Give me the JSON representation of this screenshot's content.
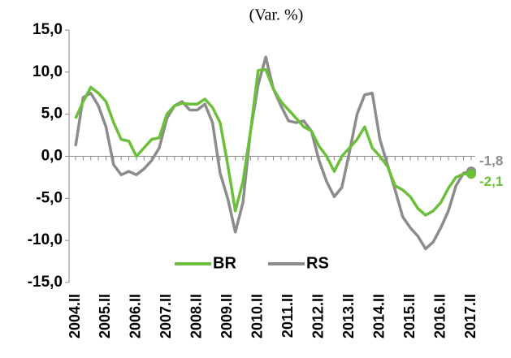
{
  "chart_data": {
    "type": "line",
    "title": "(Var. %)",
    "categories": [
      "2004.II",
      null,
      null,
      null,
      "2005.II",
      null,
      null,
      null,
      "2006.II",
      null,
      null,
      null,
      "2007.II",
      null,
      null,
      null,
      "2008.II",
      null,
      null,
      null,
      "2009.II",
      null,
      null,
      null,
      "2010.II",
      null,
      null,
      null,
      "2011.II",
      null,
      null,
      null,
      "2012.II",
      null,
      null,
      null,
      "2013.II",
      null,
      null,
      null,
      "2014.II",
      null,
      null,
      null,
      "2015.II",
      null,
      null,
      null,
      "2016.II",
      null,
      null,
      null,
      "2017.II"
    ],
    "series": [
      {
        "name": "BR",
        "color": "#6cbf3a",
        "values": [
          4.5,
          6.5,
          8.2,
          7.5,
          6.5,
          4,
          2,
          1.8,
          0,
          1,
          2,
          2.2,
          5,
          6,
          6.3,
          6.2,
          6.2,
          6.8,
          5.8,
          4,
          -1,
          -6.5,
          -3,
          3,
          10.2,
          10.3,
          8,
          6.5,
          5.5,
          4.5,
          3.5,
          3,
          1.2,
          0,
          -1.8,
          0,
          1,
          2,
          3.5,
          1,
          0,
          -1.2,
          -3.5,
          -4,
          -4.8,
          -6.2,
          -7,
          -6.5,
          -5.5,
          -3.8,
          -2.5,
          -2.1,
          -2.1
        ],
        "value_labels": [
          null,
          null,
          null,
          null,
          null,
          null,
          null,
          null,
          null,
          null,
          null,
          null,
          null,
          null,
          null,
          null,
          null,
          null,
          null,
          null,
          null,
          null,
          null,
          null,
          null,
          null,
          null,
          null,
          null,
          null,
          null,
          null,
          null,
          null,
          null,
          null,
          null,
          null,
          null,
          null,
          null,
          null,
          null,
          null,
          null,
          null,
          null,
          null,
          null,
          null,
          null,
          null,
          "-2,1"
        ]
      },
      {
        "name": "RS",
        "color": "#8c8c8c",
        "values": [
          1.2,
          7,
          7.5,
          6,
          3.5,
          -1,
          -2.2,
          -1.8,
          -2.2,
          -1.5,
          -0.5,
          1,
          4.5,
          6,
          6.5,
          5.5,
          5.5,
          6.2,
          4,
          -2,
          -5,
          -9,
          -5.5,
          3,
          8.5,
          11.8,
          8,
          6,
          4.2,
          4,
          4.2,
          3,
          -0.5,
          -3,
          -4.8,
          -3.7,
          0.5,
          5,
          7.3,
          7.5,
          2,
          -1,
          -4,
          -7.2,
          -8.5,
          -9.5,
          -11,
          -10.2,
          -8.5,
          -6.5,
          -3.5,
          -2,
          -1.8
        ],
        "value_labels": [
          null,
          null,
          null,
          null,
          null,
          null,
          null,
          null,
          null,
          null,
          null,
          null,
          null,
          null,
          null,
          null,
          null,
          null,
          null,
          null,
          null,
          null,
          null,
          null,
          null,
          null,
          null,
          null,
          null,
          null,
          null,
          null,
          null,
          null,
          null,
          null,
          null,
          null,
          null,
          null,
          null,
          null,
          null,
          null,
          null,
          null,
          null,
          null,
          null,
          null,
          null,
          null,
          "-1,8"
        ]
      }
    ],
    "ylim": [
      -15,
      15
    ],
    "yticks": [
      {
        "value": -15,
        "label": "-15,0"
      },
      {
        "value": -10,
        "label": "-10,0"
      },
      {
        "value": -5,
        "label": "-5,0"
      },
      {
        "value": 0,
        "label": "0,0"
      },
      {
        "value": 5,
        "label": "5,0"
      },
      {
        "value": 10,
        "label": "10,0"
      },
      {
        "value": 15,
        "label": "15,0"
      }
    ],
    "legend": "bottom"
  }
}
